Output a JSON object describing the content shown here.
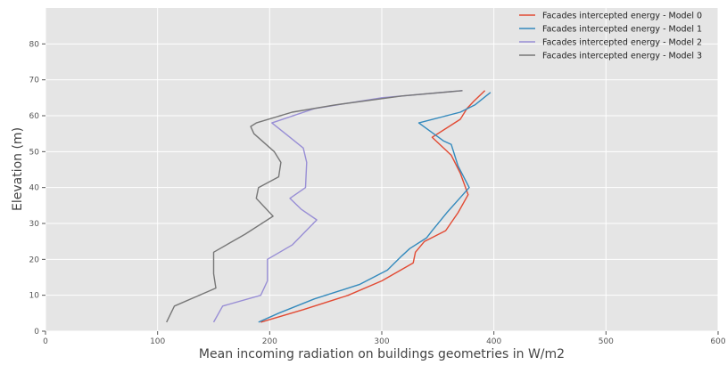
{
  "chart_data": {
    "type": "line",
    "title": "",
    "xlabel": "Mean incoming radiation on buildings geometries in W/m2",
    "ylabel": "Elevation (m)",
    "xlim": [
      0,
      600
    ],
    "ylim": [
      0,
      90
    ],
    "xticks": [
      0,
      100,
      200,
      300,
      400,
      500,
      600
    ],
    "yticks": [
      0,
      10,
      20,
      30,
      40,
      50,
      60,
      70,
      80
    ],
    "grid": true,
    "legend_position": "top-right",
    "background": "#e5e5e5",
    "series": [
      {
        "name": "Facades intercepted energy - Model 0",
        "color": "#e24a33",
        "points": [
          [
            192,
            2.5
          ],
          [
            230,
            6
          ],
          [
            270,
            10
          ],
          [
            300,
            14
          ],
          [
            328,
            19
          ],
          [
            330,
            22
          ],
          [
            338,
            25
          ],
          [
            357,
            28
          ],
          [
            368,
            33
          ],
          [
            377,
            38
          ],
          [
            370,
            44
          ],
          [
            362,
            49
          ],
          [
            345,
            54
          ],
          [
            370,
            59
          ],
          [
            376,
            62
          ],
          [
            382,
            64
          ],
          [
            392,
            67
          ]
        ]
      },
      {
        "name": "Facades intercepted energy - Model 1",
        "color": "#348abd",
        "points": [
          [
            190,
            2.5
          ],
          [
            208,
            5
          ],
          [
            240,
            9
          ],
          [
            280,
            13
          ],
          [
            305,
            17
          ],
          [
            318,
            21
          ],
          [
            325,
            23
          ],
          [
            340,
            26
          ],
          [
            345,
            28
          ],
          [
            358,
            33
          ],
          [
            378,
            40
          ],
          [
            368,
            46
          ],
          [
            362,
            52
          ],
          [
            355,
            53
          ],
          [
            333,
            58
          ],
          [
            370,
            61
          ],
          [
            383,
            63
          ],
          [
            397,
            66.5
          ]
        ]
      },
      {
        "name": "Facades intercepted energy - Model 2",
        "color": "#988ed5",
        "points": [
          [
            150,
            2.5
          ],
          [
            158,
            7
          ],
          [
            192,
            10
          ],
          [
            198,
            14
          ],
          [
            198,
            20
          ],
          [
            220,
            24
          ],
          [
            242,
            31
          ],
          [
            228,
            34
          ],
          [
            218,
            37
          ],
          [
            232,
            40
          ],
          [
            233,
            47
          ],
          [
            230,
            51
          ],
          [
            218,
            54
          ],
          [
            202,
            58
          ],
          [
            240,
            62
          ],
          [
            300,
            65
          ],
          [
            372,
            67
          ]
        ]
      },
      {
        "name": "Facades intercepted energy - Model 3",
        "color": "#777777",
        "points": [
          [
            108,
            2.5
          ],
          [
            115,
            7
          ],
          [
            152,
            12
          ],
          [
            150,
            16
          ],
          [
            150,
            22
          ],
          [
            178,
            27
          ],
          [
            203,
            32
          ],
          [
            188,
            37
          ],
          [
            190,
            40
          ],
          [
            208,
            43
          ],
          [
            210,
            47
          ],
          [
            204,
            50
          ],
          [
            186,
            55
          ],
          [
            183,
            57
          ],
          [
            188,
            58
          ],
          [
            220,
            61
          ],
          [
            258,
            63
          ],
          [
            318,
            65.5
          ],
          [
            372,
            67
          ]
        ]
      }
    ]
  }
}
